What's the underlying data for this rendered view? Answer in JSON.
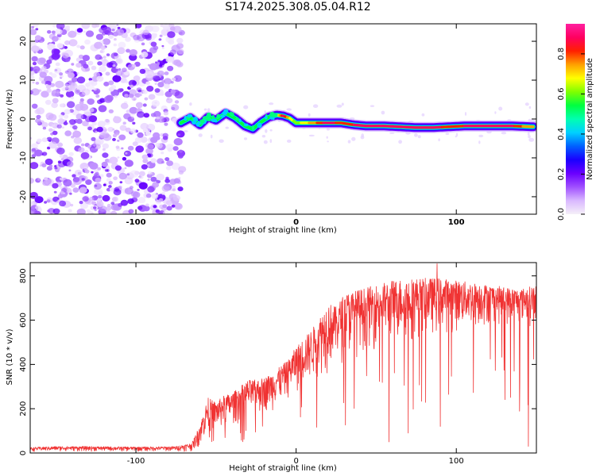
{
  "figure_title": "S174.2025.308.05.04.R12",
  "colors": {
    "snr_line": "#f03232",
    "colorbar_stops": [
      "#f5f0f8",
      "#d9b8ff",
      "#a050ff",
      "#6a00ff",
      "#1a00ff",
      "#0060ff",
      "#00d0ff",
      "#00ffb0",
      "#00ff40",
      "#80ff00",
      "#ffff00",
      "#ffa000",
      "#ff2000",
      "#ff0060",
      "#ff20a0"
    ]
  },
  "chart_data": [
    {
      "type": "heatmap",
      "title": "S174.2025.308.05.04.R12",
      "xlabel": "Height of straight line (km)",
      "ylabel": "Frequency (Hz)",
      "xlim": [
        -166,
        150
      ],
      "ylim": [
        -24.5,
        24.5
      ],
      "x_ticks": [
        -100,
        0,
        100
      ],
      "x_tick_labels": [
        "-100",
        "0",
        "100"
      ],
      "y_ticks": [
        -20,
        -10,
        0,
        10,
        20
      ],
      "y_tick_labels": [
        "-20",
        "-10",
        "0",
        "10",
        "20"
      ],
      "noise_region_x": [
        -166,
        -71
      ],
      "ridge": {
        "x": [
          -72,
          -66,
          -60,
          -55,
          -50,
          -44,
          -38,
          -32,
          -27,
          -22,
          -17,
          -12,
          -8,
          -4,
          0,
          10,
          20,
          28,
          36,
          44,
          55,
          65,
          75,
          85,
          95,
          105,
          115,
          125,
          135,
          148
        ],
        "freq": [
          -1.0,
          0.3,
          -1.5,
          0.5,
          -0.3,
          1.5,
          0.2,
          -1.8,
          -2.6,
          -0.8,
          0.5,
          1.0,
          0.8,
          0.2,
          -1.0,
          -1.0,
          -1.0,
          -1.0,
          -1.5,
          -1.8,
          -1.8,
          -2.0,
          -2.2,
          -2.2,
          -2.0,
          -1.8,
          -1.8,
          -1.8,
          -1.8,
          -2.0
        ],
        "amplitude": [
          0.35,
          0.45,
          0.45,
          0.5,
          0.55,
          0.5,
          0.45,
          0.4,
          0.35,
          0.45,
          0.55,
          0.6,
          0.9,
          0.7,
          0.6,
          0.75,
          0.9,
          0.8,
          0.85,
          0.9,
          0.9,
          0.85,
          0.9,
          0.9,
          0.8,
          0.85,
          0.9,
          0.9,
          0.85,
          0.7
        ]
      },
      "colorbar": {
        "label": "Normalized spectral amplitude",
        "range": [
          0.0,
          0.95
        ],
        "ticks": [
          0.0,
          0.2,
          0.4,
          0.6,
          0.8
        ],
        "tick_labels": [
          "0.0",
          "0.2",
          "0.4",
          "0.6",
          "0.8"
        ]
      }
    },
    {
      "type": "line",
      "xlabel": "Height of straight line (km)",
      "ylabel": "SNR (10 * v/v)",
      "xlim": [
        -166,
        150
      ],
      "ylim": [
        0,
        860
      ],
      "x_ticks": [
        -100,
        0,
        100
      ],
      "x_tick_labels": [
        "-100",
        "0",
        "100"
      ],
      "y_ticks": [
        0,
        200,
        400,
        600,
        800
      ],
      "y_tick_labels": [
        "0",
        "200",
        "400",
        "600",
        "800"
      ],
      "series": [
        {
          "name": "SNR",
          "x": [
            -166,
            -150,
            -130,
            -110,
            -90,
            -75,
            -65,
            -60,
            -55,
            -50,
            -45,
            -40,
            -35,
            -30,
            -25,
            -20,
            -15,
            -10,
            -5,
            0,
            5,
            10,
            15,
            20,
            25,
            30,
            40,
            50,
            60,
            70,
            80,
            90,
            100,
            110,
            120,
            130,
            140,
            150
          ],
          "upper": [
            25,
            30,
            30,
            28,
            28,
            30,
            45,
            130,
            250,
            230,
            260,
            270,
            300,
            330,
            330,
            340,
            360,
            390,
            420,
            480,
            520,
            560,
            620,
            680,
            660,
            720,
            740,
            760,
            780,
            790,
            790,
            790,
            780,
            770,
            760,
            750,
            740,
            760
          ],
          "lower": [
            5,
            5,
            5,
            5,
            5,
            5,
            5,
            20,
            60,
            80,
            90,
            110,
            120,
            140,
            150,
            170,
            180,
            200,
            230,
            250,
            280,
            300,
            320,
            340,
            380,
            400,
            430,
            450,
            470,
            480,
            500,
            520,
            530,
            540,
            560,
            560,
            560,
            580
          ],
          "dips": [
            {
              "x": 58,
              "y": 50
            },
            {
              "x": 70,
              "y": 90
            },
            {
              "x": 90,
              "y": 120
            },
            {
              "x": 145,
              "y": 30
            },
            {
              "x": 88,
              "y": 855
            }
          ]
        }
      ]
    }
  ]
}
